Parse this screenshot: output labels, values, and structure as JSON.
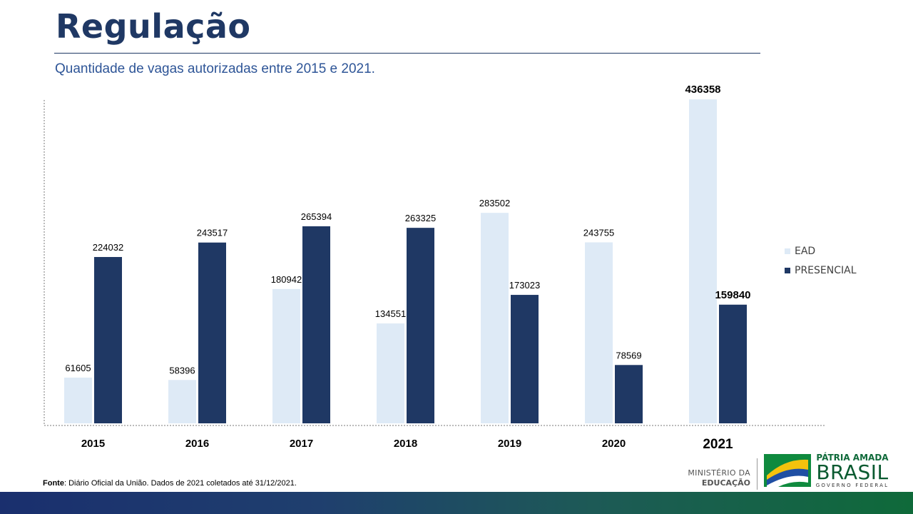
{
  "header": {
    "title": "Regulação",
    "subtitle": "Quantidade de vagas autorizadas entre 2015 e 2021."
  },
  "chart_data": {
    "type": "bar",
    "title": "",
    "xlabel": "",
    "ylabel": "",
    "categories": [
      "2015",
      "2016",
      "2017",
      "2018",
      "2019",
      "2020",
      "2021"
    ],
    "series": [
      {
        "name": "EAD",
        "color": "#deeaf6",
        "values": [
          61605,
          58396,
          180942,
          134551,
          283502,
          243755,
          436358
        ]
      },
      {
        "name": "PRESENCIAL",
        "color": "#1f3864",
        "values": [
          224032,
          243517,
          265394,
          263325,
          173023,
          78569,
          159840
        ]
      }
    ],
    "ylim": [
      0,
      500000
    ],
    "grid": false,
    "legend": "right",
    "highlight_category": "2021"
  },
  "footer": {
    "source_label": "Fonte",
    "source_text": ": Diário Oficial da União. Dados de 2021 coletados até 31/12/2021.",
    "ministry_line1": "MINISTÉRIO DA",
    "ministry_line2": "EDUCAÇÃO",
    "brand_line1": "PÁTRIA AMADA",
    "brand_line2": "BRASIL",
    "brand_line3": "GOVERNO FEDERAL"
  }
}
